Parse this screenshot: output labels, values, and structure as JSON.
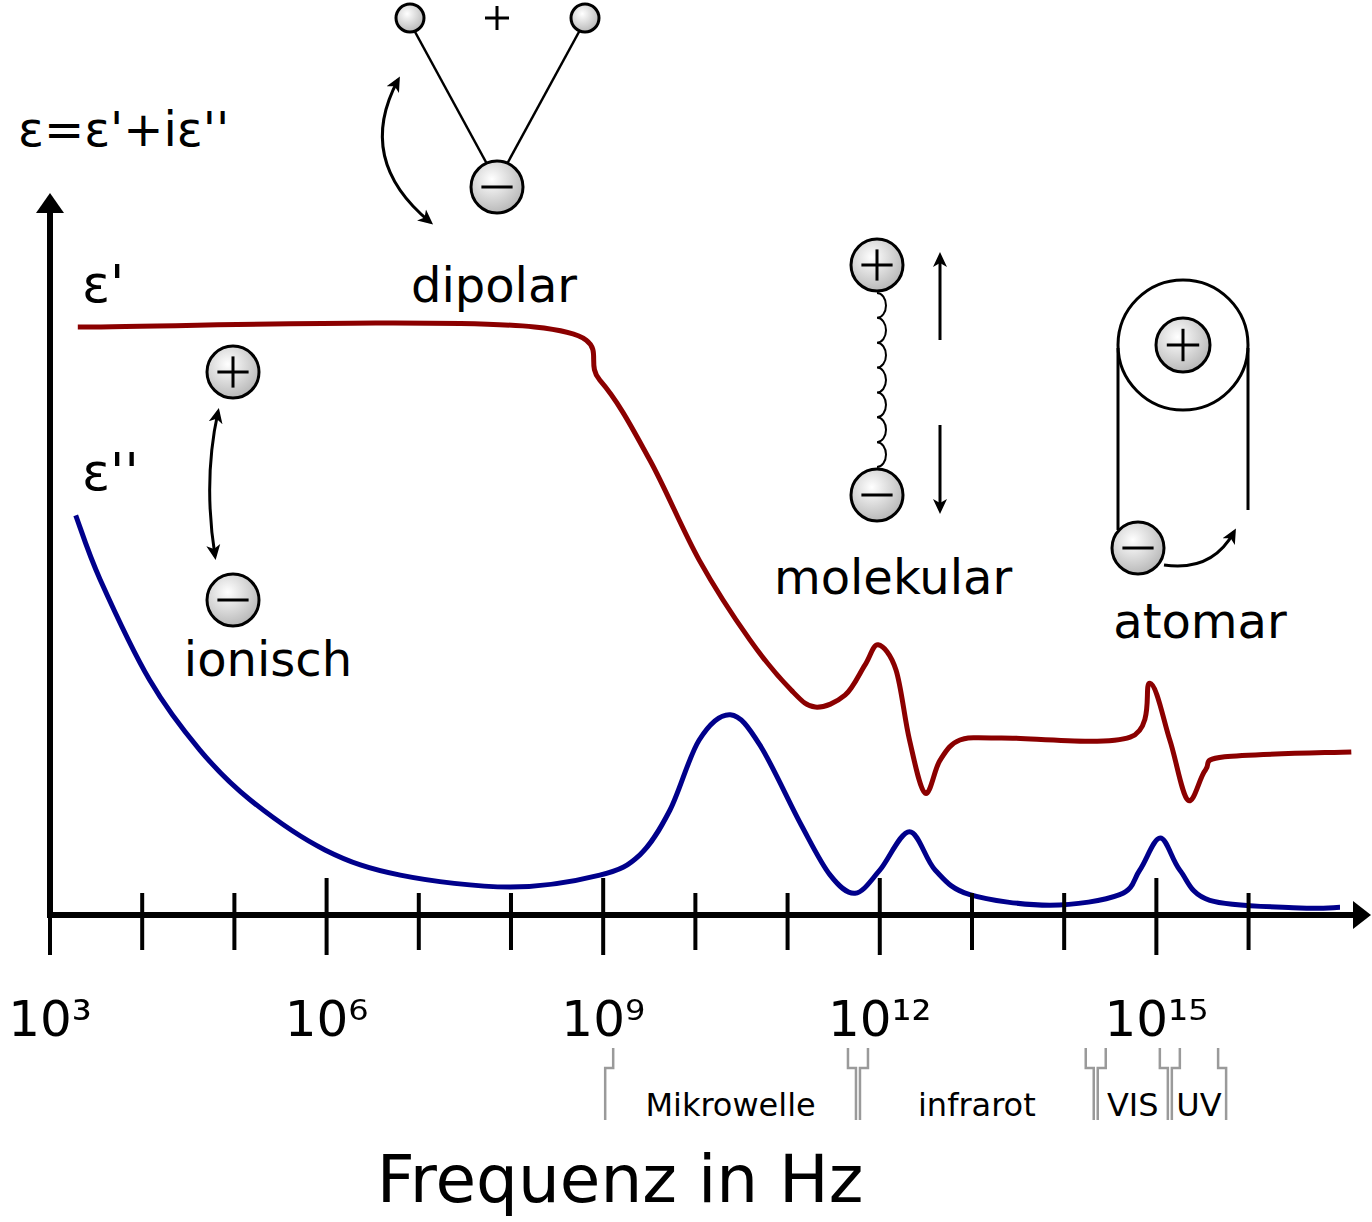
{
  "chart_data": {
    "type": "line",
    "y_label": "ε=ε'+iε''",
    "x_label": "Frequenz in Hz",
    "log": "x",
    "grid": false,
    "tick_labels": "x",
    "xlim": [
      1000,
      1.5e+17
    ],
    "ylim": [
      0,
      10
    ],
    "xticks": [
      {
        "value": 1000,
        "label": "10³"
      },
      {
        "value": 10000,
        "label": null
      },
      {
        "value": 100000,
        "label": null
      },
      {
        "value": 1000000,
        "label": "10⁶"
      },
      {
        "value": 10000000,
        "label": null
      },
      {
        "value": 100000000,
        "label": null
      },
      {
        "value": 1000000000,
        "label": "10⁹"
      },
      {
        "value": 10000000000.0,
        "label": null
      },
      {
        "value": 100000000000.0,
        "label": null
      },
      {
        "value": 1000000000000.0,
        "label": "10¹²"
      },
      {
        "value": 10000000000000.0,
        "label": null
      },
      {
        "value": 100000000000000.0,
        "label": null
      },
      {
        "value": 1000000000000000.0,
        "label": "10¹⁵"
      },
      {
        "value": 1e+16,
        "label": null
      }
    ],
    "series": [
      {
        "name": "ε'",
        "color": "#8b0000",
        "x": [
          2000.0,
          180000000.0,
          920000000.0,
          3200000000.0,
          11000000000.0,
          39000000000.0,
          110000000000.0,
          200000000000.0,
          420000000000.0,
          690000000000.0,
          960000000000.0,
          1500000000000.0,
          2100000000000.0,
          3100000000000.0,
          4500000000000.0,
          7400000000000.0,
          20000000000000.0,
          520000000000000.0,
          850000000000000.0,
          1400000000000000.0,
          2200000000000000.0,
          3400000000000000.0,
          5500000000000000.0,
          1.3e+17
        ],
        "values": [
          8.4,
          8.4,
          7.64,
          6.5,
          5.07,
          3.93,
          3.21,
          2.97,
          3.14,
          3.57,
          3.86,
          3.5,
          2.5,
          1.74,
          2.21,
          2.5,
          2.53,
          2.54,
          3.31,
          2.5,
          1.64,
          2.07,
          2.26,
          2.33
        ]
      },
      {
        "name": "ε''",
        "color": "#00008b",
        "x": [
          1900.0,
          3500.0,
          12000.0,
          42000.0,
          150000.0,
          960000.0,
          6300000.0,
          98000000.0,
          920000000.0,
          2500000000.0,
          5300000000.0,
          11000000000.0,
          24000000000.0,
          50000000000.0,
          140000000000.0,
          290000000000.0,
          540000000000.0,
          1000000000000.0,
          2100000000000.0,
          4000000000000.0,
          9500000000000.0,
          70000000000000.0,
          400000000000000.0,
          660000000000000.0,
          1100000000000000.0,
          1800000000000000.0,
          3800000000000000.0,
          3.6e+16,
          9.8e+16
        ],
        "values": [
          5.71,
          4.79,
          3.36,
          2.36,
          1.64,
          0.93,
          0.57,
          0.4,
          0.57,
          0.86,
          1.5,
          2.5,
          2.86,
          2.43,
          1.29,
          0.57,
          0.31,
          0.64,
          1.19,
          0.64,
          0.29,
          0.14,
          0.29,
          0.64,
          1.1,
          0.64,
          0.21,
          0.1,
          0.11
        ]
      }
    ],
    "annotations": [
      "ionisch",
      "dipolar",
      "molekular",
      "atomar"
    ],
    "bands": [
      {
        "label": "Mikrowelle",
        "from": 1000000000.0,
        "to": 580000000000.0
      },
      {
        "label": "infrarot",
        "from": 580000000000.0,
        "to": 220000000000000.0
      },
      {
        "label": "VIS",
        "from": 220000000000000.0,
        "to": 1400000000000000.0
      },
      {
        "label": "UV",
        "from": 1400000000000000.0,
        "to": 6000000000000000.0
      }
    ]
  }
}
